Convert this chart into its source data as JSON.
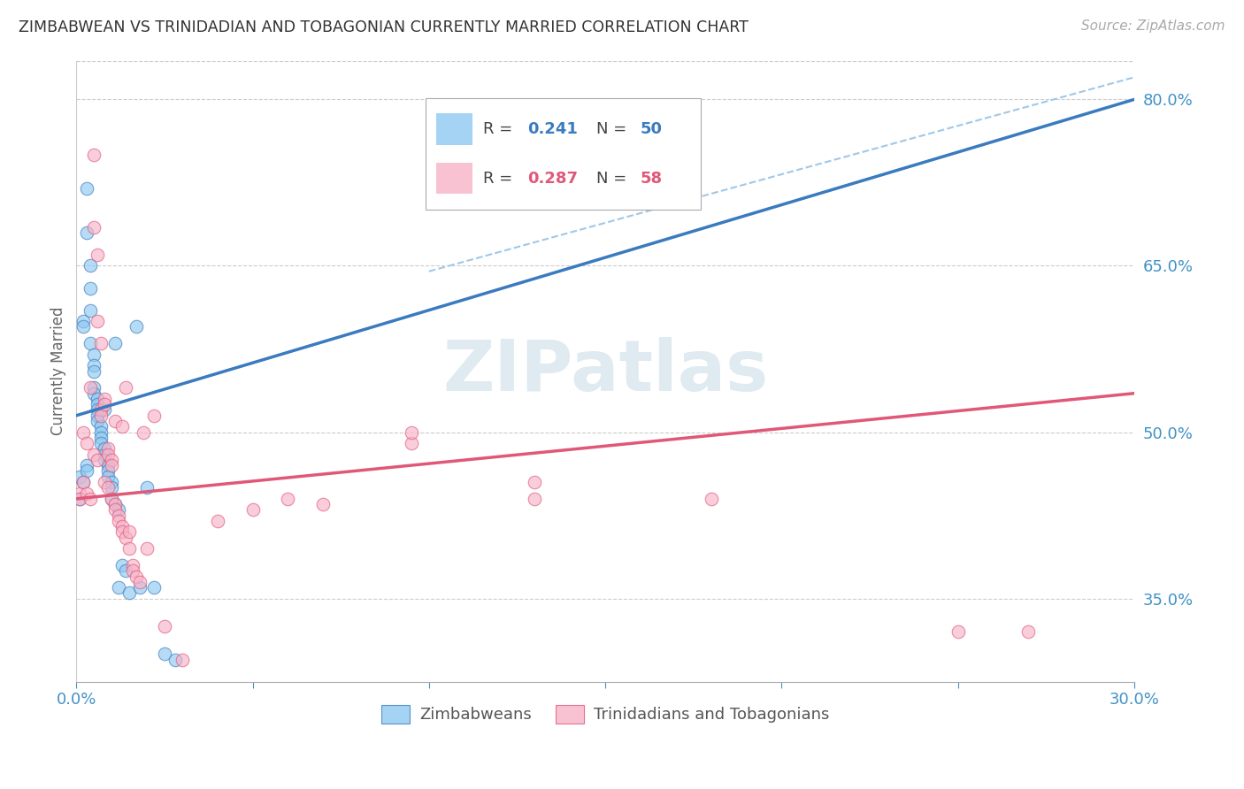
{
  "title": "ZIMBABWEAN VS TRINIDADIAN AND TOBAGONIAN CURRENTLY MARRIED CORRELATION CHART",
  "source": "Source: ZipAtlas.com",
  "ylabel": "Currently Married",
  "x_min": 0.0,
  "x_max": 0.3,
  "y_min": 0.275,
  "y_max": 0.835,
  "right_yticks": [
    0.35,
    0.5,
    0.65,
    0.8
  ],
  "right_yticklabels": [
    "35.0%",
    "50.0%",
    "65.0%",
    "80.0%"
  ],
  "x_ticks": [
    0.0,
    0.05,
    0.1,
    0.15,
    0.2,
    0.25,
    0.3
  ],
  "x_ticklabels": [
    "0.0%",
    "",
    "",
    "",
    "",
    "",
    "30.0%"
  ],
  "blue_color": "#8ec8f0",
  "pink_color": "#f7b3c8",
  "trend_blue": "#3a7bbf",
  "trend_pink": "#e05878",
  "dashed_blue": "#a0c8e8",
  "background_color": "#ffffff",
  "grid_color": "#cccccc",
  "watermark": "ZIPatlas",
  "watermark_color": "#dce8f0",
  "blue_scatter_x": [
    0.001,
    0.001,
    0.002,
    0.002,
    0.002,
    0.003,
    0.003,
    0.003,
    0.003,
    0.004,
    0.004,
    0.004,
    0.004,
    0.005,
    0.005,
    0.005,
    0.005,
    0.005,
    0.006,
    0.006,
    0.006,
    0.006,
    0.006,
    0.007,
    0.007,
    0.007,
    0.007,
    0.008,
    0.008,
    0.008,
    0.008,
    0.009,
    0.009,
    0.009,
    0.01,
    0.01,
    0.01,
    0.011,
    0.011,
    0.012,
    0.012,
    0.013,
    0.014,
    0.015,
    0.017,
    0.018,
    0.02,
    0.022,
    0.025,
    0.028
  ],
  "blue_scatter_y": [
    0.46,
    0.44,
    0.6,
    0.595,
    0.455,
    0.72,
    0.68,
    0.47,
    0.465,
    0.65,
    0.63,
    0.61,
    0.58,
    0.57,
    0.56,
    0.555,
    0.54,
    0.535,
    0.53,
    0.525,
    0.52,
    0.515,
    0.51,
    0.505,
    0.5,
    0.495,
    0.49,
    0.485,
    0.48,
    0.475,
    0.52,
    0.47,
    0.465,
    0.46,
    0.455,
    0.45,
    0.44,
    0.58,
    0.435,
    0.43,
    0.36,
    0.38,
    0.375,
    0.355,
    0.595,
    0.36,
    0.45,
    0.36,
    0.3,
    0.295
  ],
  "pink_scatter_x": [
    0.001,
    0.001,
    0.002,
    0.002,
    0.003,
    0.003,
    0.004,
    0.004,
    0.005,
    0.005,
    0.005,
    0.006,
    0.006,
    0.006,
    0.007,
    0.007,
    0.007,
    0.008,
    0.008,
    0.008,
    0.009,
    0.009,
    0.009,
    0.01,
    0.01,
    0.01,
    0.011,
    0.011,
    0.011,
    0.012,
    0.012,
    0.013,
    0.013,
    0.013,
    0.014,
    0.014,
    0.015,
    0.015,
    0.016,
    0.016,
    0.017,
    0.018,
    0.019,
    0.02,
    0.022,
    0.025,
    0.03,
    0.095,
    0.13,
    0.18,
    0.25,
    0.27,
    0.095,
    0.13,
    0.06,
    0.07,
    0.05,
    0.04
  ],
  "pink_scatter_y": [
    0.445,
    0.44,
    0.455,
    0.5,
    0.49,
    0.445,
    0.44,
    0.54,
    0.75,
    0.685,
    0.48,
    0.66,
    0.6,
    0.475,
    0.58,
    0.52,
    0.515,
    0.53,
    0.525,
    0.455,
    0.45,
    0.485,
    0.48,
    0.475,
    0.47,
    0.44,
    0.435,
    0.43,
    0.51,
    0.425,
    0.42,
    0.415,
    0.41,
    0.505,
    0.405,
    0.54,
    0.41,
    0.395,
    0.38,
    0.375,
    0.37,
    0.365,
    0.5,
    0.395,
    0.515,
    0.325,
    0.295,
    0.49,
    0.44,
    0.44,
    0.32,
    0.32,
    0.5,
    0.455,
    0.44,
    0.435,
    0.43,
    0.42
  ]
}
